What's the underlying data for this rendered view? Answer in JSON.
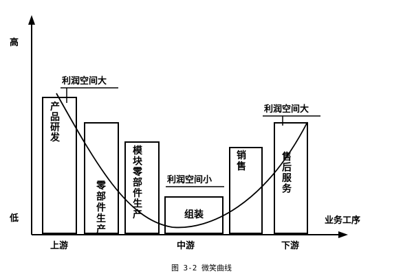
{
  "axis": {
    "y_high": "高",
    "y_low": "低",
    "x_label": "业务工序"
  },
  "stages": {
    "upstream": "上游",
    "midstream": "中游",
    "downstream": "下游"
  },
  "boxes": [
    {
      "id": "product-rd",
      "label": "产品研发"
    },
    {
      "id": "parts-production",
      "label": "零部件生产"
    },
    {
      "id": "module-parts-production",
      "label": "模块零部件生产"
    },
    {
      "id": "assembly",
      "label": "组装"
    },
    {
      "id": "sales",
      "label": "销售"
    },
    {
      "id": "after-sales-service",
      "label": "售后服务"
    }
  ],
  "annotations": {
    "left": "利润空间大",
    "middle": "利润空间小",
    "right": "利润空间大"
  },
  "caption": "图 3-2 微笑曲线"
}
